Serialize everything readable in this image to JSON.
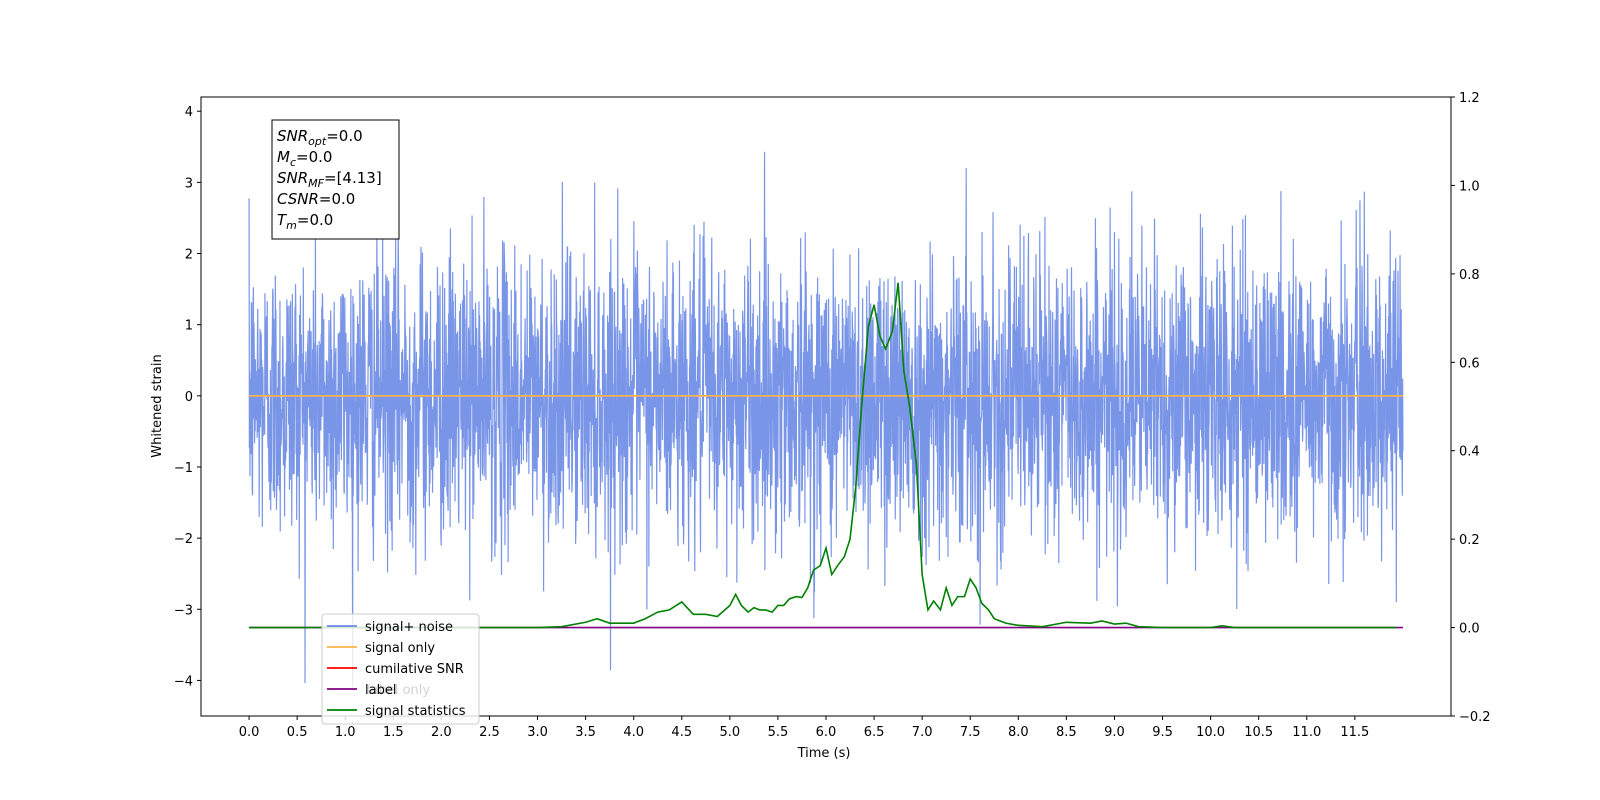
{
  "chart_data": {
    "type": "line",
    "xlabel": "Time (s)",
    "ylabel": "Whitened strain",
    "xlim": [
      -0.5,
      12.5
    ],
    "ylim_left": [
      -4.5,
      4.2
    ],
    "ylim_right": [
      -0.2,
      1.2
    ],
    "x_ticks": [
      0.0,
      0.5,
      1.0,
      1.5,
      2.0,
      2.5,
      3.0,
      3.5,
      4.0,
      4.5,
      5.0,
      5.5,
      6.0,
      6.5,
      7.0,
      7.5,
      8.0,
      8.5,
      9.0,
      9.5,
      10.0,
      10.5,
      11.0,
      11.5
    ],
    "x_tick_labels": [
      "0.0",
      "0.5",
      "1.0",
      "1.5",
      "2.0",
      "2.5",
      "3.0",
      "3.5",
      "4.0",
      "4.5",
      "5.0",
      "5.5",
      "6.0",
      "6.5",
      "7.0",
      "7.5",
      "8.0",
      "8.5",
      "9.0",
      "9.5",
      "10.0",
      "10.5",
      "11.0",
      "11.5"
    ],
    "y_ticks_left": [
      -4,
      -3,
      -2,
      -1,
      0,
      1,
      2,
      3,
      4
    ],
    "y_tick_labels_left": [
      "−4",
      "−3",
      "−2",
      "−1",
      "0",
      "1",
      "2",
      "3",
      "4"
    ],
    "y_ticks_right": [
      -0.2,
      0.0,
      0.2,
      0.4,
      0.6,
      0.8,
      1.0,
      1.2
    ],
    "y_tick_labels_right": [
      "−0.2",
      "0.0",
      "0.2",
      "0.4",
      "0.6",
      "0.8",
      "1.0",
      "1.2"
    ],
    "legend_position": "lower-left",
    "series": [
      {
        "name": "signal+ noise",
        "color": "#6a89e6",
        "axis": "left",
        "kind": "noise",
        "x_range": [
          0.0,
          12.0
        ],
        "sigma": 1.0,
        "extremes": [
          -4.1,
          3.8
        ]
      },
      {
        "name": "signal only",
        "color": "#ffb347",
        "axis": "left",
        "x": [
          0.0,
          12.0
        ],
        "y": [
          0.0,
          0.0
        ]
      },
      {
        "name": "cumilative SNR",
        "color": "#ff0000",
        "axis": "right",
        "x": [],
        "y": []
      },
      {
        "name": "label",
        "color": "#800080",
        "axis": "right",
        "x": [
          0.0,
          12.0
        ],
        "y": [
          0.0,
          0.0
        ]
      },
      {
        "name": "signal statistics",
        "color": "#008000",
        "axis": "right",
        "x": [
          0.0,
          0.5,
          1.0,
          1.5,
          2.0,
          2.5,
          3.0,
          3.25,
          3.5,
          3.62,
          3.75,
          3.87,
          4.0,
          4.12,
          4.25,
          4.37,
          4.5,
          4.62,
          4.75,
          4.87,
          5.0,
          5.06,
          5.12,
          5.19,
          5.25,
          5.31,
          5.37,
          5.44,
          5.5,
          5.56,
          5.62,
          5.69,
          5.75,
          5.81,
          5.87,
          5.94,
          6.0,
          6.06,
          6.12,
          6.19,
          6.25,
          6.31,
          6.37,
          6.44,
          6.5,
          6.56,
          6.62,
          6.69,
          6.75,
          6.81,
          6.87,
          6.94,
          7.0,
          7.06,
          7.12,
          7.19,
          7.25,
          7.31,
          7.37,
          7.44,
          7.5,
          7.56,
          7.62,
          7.69,
          7.75,
          7.87,
          8.0,
          8.25,
          8.5,
          8.75,
          8.87,
          9.0,
          9.12,
          9.25,
          9.5,
          10.0,
          10.12,
          10.25,
          10.5,
          11.0,
          11.5,
          11.93
        ],
        "y": [
          0.0,
          0.0,
          0.0,
          0.0,
          0.0,
          0.0,
          0.0,
          0.002,
          0.012,
          0.02,
          0.01,
          0.01,
          0.01,
          0.02,
          0.035,
          0.04,
          0.058,
          0.03,
          0.03,
          0.025,
          0.05,
          0.075,
          0.05,
          0.035,
          0.045,
          0.04,
          0.04,
          0.035,
          0.05,
          0.05,
          0.065,
          0.07,
          0.068,
          0.09,
          0.13,
          0.14,
          0.18,
          0.12,
          0.14,
          0.16,
          0.2,
          0.32,
          0.5,
          0.68,
          0.73,
          0.66,
          0.63,
          0.67,
          0.78,
          0.58,
          0.5,
          0.37,
          0.12,
          0.04,
          0.06,
          0.04,
          0.09,
          0.05,
          0.07,
          0.07,
          0.11,
          0.09,
          0.055,
          0.04,
          0.02,
          0.01,
          0.005,
          0.002,
          0.012,
          0.01,
          0.015,
          0.008,
          0.01,
          0.002,
          0.0,
          0.0,
          0.004,
          0.0,
          0.0,
          0.0,
          0.0,
          0.0
        ]
      }
    ],
    "annotation_lines": [
      {
        "var": "SNR",
        "sub": "opt",
        "value": "=0.0"
      },
      {
        "var": "M",
        "sub": "c",
        "value": "=0.0"
      },
      {
        "var": "SNR",
        "sub": "MF",
        "value": "=[4.13]"
      },
      {
        "var": "CSNR",
        "sub": "",
        "value": "=0.0"
      },
      {
        "var": "T",
        "sub": "m",
        "value": "=0.0"
      }
    ],
    "hidden_legend_text": "label only"
  }
}
